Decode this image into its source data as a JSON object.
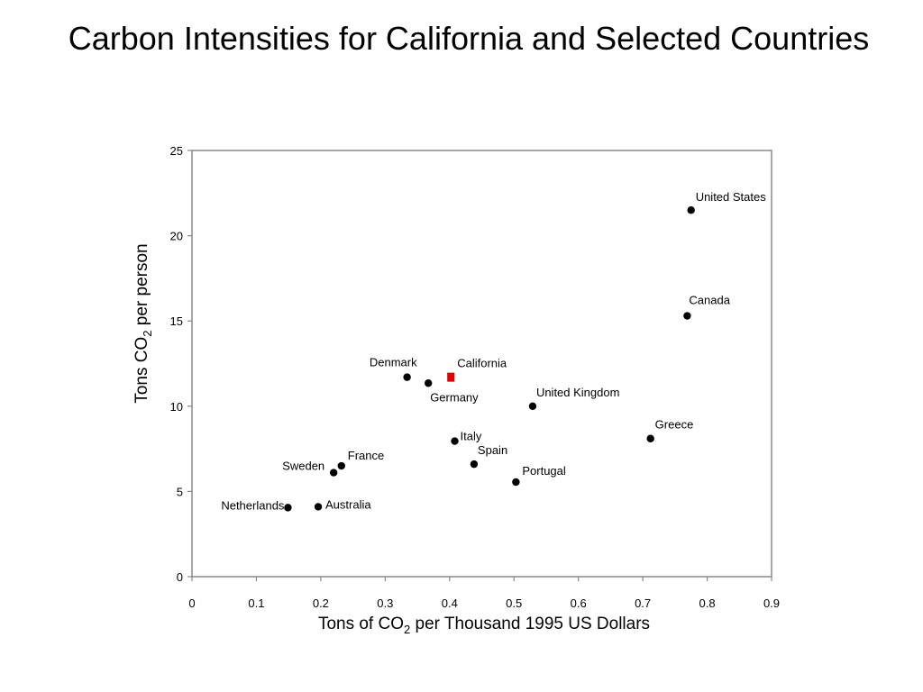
{
  "title": "Carbon Intensities for California and Selected Countries",
  "chart_data": {
    "type": "scatter",
    "title": "Carbon Intensities for California and Selected Countries",
    "xlabel": {
      "pre": "Tons of CO",
      "sub": "2",
      "post": " per Thousand 1995 US Dollars"
    },
    "ylabel": {
      "pre": "Tons CO",
      "sub": "2",
      "post": " per person"
    },
    "xlim": [
      0,
      0.9
    ],
    "ylim": [
      0,
      25
    ],
    "xticks": [
      0,
      0.1,
      0.2,
      0.3,
      0.4,
      0.5,
      0.6,
      0.7,
      0.8,
      0.9
    ],
    "yticks": [
      0,
      5,
      10,
      15,
      20,
      25
    ],
    "grid": false,
    "marker_color": "#000000",
    "highlight_color": "#e00000",
    "points": [
      {
        "label": "United States",
        "x": 0.775,
        "y": 21.5
      },
      {
        "label": "Canada",
        "x": 0.769,
        "y": 15.3
      },
      {
        "label": "Denmark",
        "x": 0.334,
        "y": 11.7
      },
      {
        "label": "California",
        "x": 0.402,
        "y": 11.7,
        "highlight": true
      },
      {
        "label": "Germany",
        "x": 0.367,
        "y": 11.35
      },
      {
        "label": "United Kingdom",
        "x": 0.529,
        "y": 10.0
      },
      {
        "label": "Greece",
        "x": 0.712,
        "y": 8.1
      },
      {
        "label": "Italy",
        "x": 0.408,
        "y": 7.95
      },
      {
        "label": "Spain",
        "x": 0.438,
        "y": 6.6
      },
      {
        "label": "France",
        "x": 0.232,
        "y": 6.5
      },
      {
        "label": "Sweden",
        "x": 0.22,
        "y": 6.1
      },
      {
        "label": "Portugal",
        "x": 0.503,
        "y": 5.55
      },
      {
        "label": "Netherlands",
        "x": 0.149,
        "y": 4.05
      },
      {
        "label": "Australia",
        "x": 0.196,
        "y": 4.1
      }
    ]
  }
}
